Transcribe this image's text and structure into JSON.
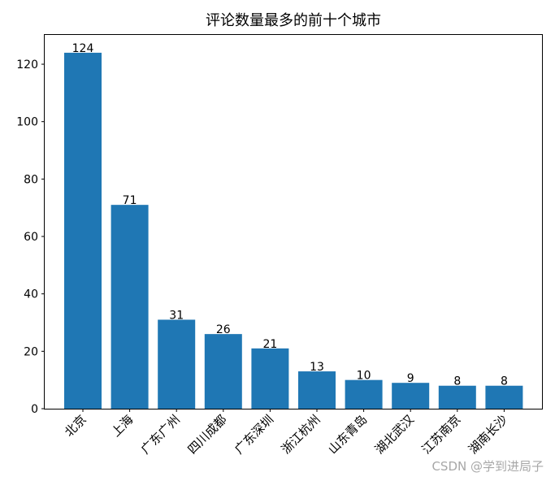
{
  "chart_data": {
    "type": "bar",
    "title": "评论数量最多的前十个城市",
    "xlabel": "",
    "ylabel": "",
    "categories": [
      "北京",
      "上海",
      "广东广州",
      "四川成都",
      "广东深圳",
      "浙江杭州",
      "山东青岛",
      "湖北武汉",
      "江苏南京",
      "湖南长沙"
    ],
    "values": [
      124,
      71,
      31,
      26,
      21,
      13,
      10,
      9,
      8,
      8
    ],
    "data_labels": [
      "124",
      "71",
      "31",
      "26",
      "21",
      "13",
      "10",
      "9",
      "8",
      "8"
    ],
    "yticks": [
      0,
      20,
      40,
      60,
      80,
      100,
      120
    ],
    "ylim": [
      0,
      130.2
    ],
    "grid": false,
    "bar_color": "#1f77b4"
  },
  "watermark": "CSDN @学到进局子"
}
